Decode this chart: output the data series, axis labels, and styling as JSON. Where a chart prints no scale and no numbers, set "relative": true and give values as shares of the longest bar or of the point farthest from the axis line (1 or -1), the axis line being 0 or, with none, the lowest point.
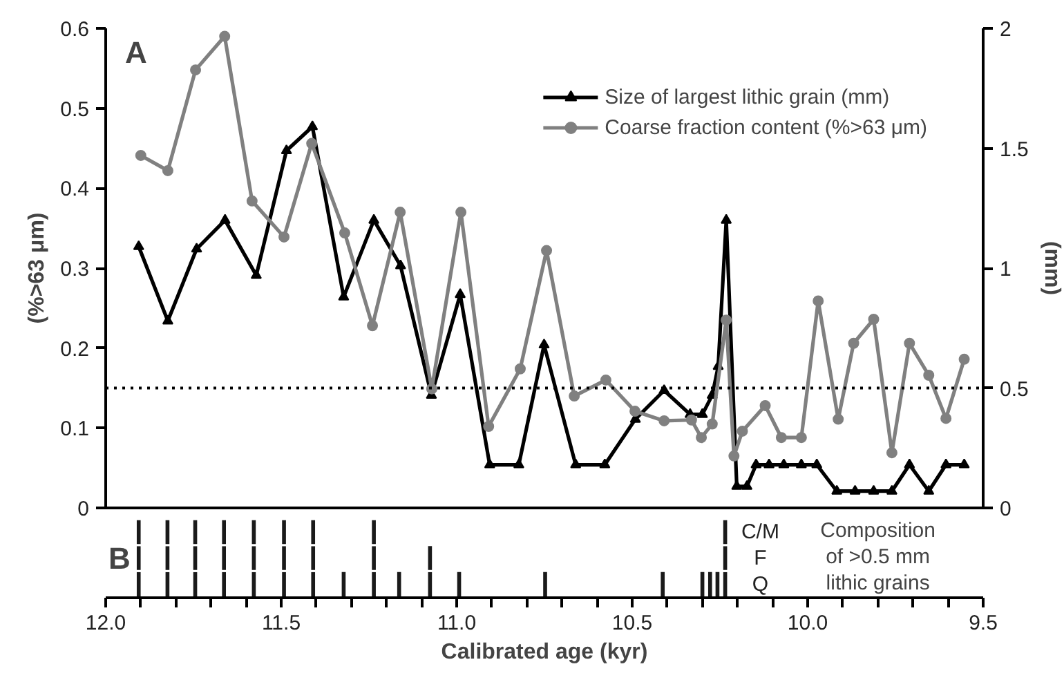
{
  "chart_data": [
    {
      "type": "line",
      "xlim": [
        12.0,
        9.5
      ],
      "xticks": [
        {
          "value": 12.0,
          "label": "12.0"
        },
        {
          "value": 11.5,
          "label": "11.5"
        },
        {
          "value": 11.0,
          "label": "11.0"
        },
        {
          "value": 10.5,
          "label": "10.5"
        },
        {
          "value": 10.0,
          "label": "10.0"
        },
        {
          "value": 9.5,
          "label": "9.5"
        }
      ],
      "tick_labels": "y",
      "ylim": [
        0,
        0.6
      ],
      "yticks": [
        0,
        0.1,
        0.2,
        0.3,
        0.4,
        0.5,
        0.6
      ],
      "y2lim": [
        0,
        2
      ],
      "y2ticks": [
        0,
        0.5,
        1,
        1.5,
        2
      ],
      "ylabel": "(%>63 μm)",
      "y2label": "(mm)",
      "legend": "top right",
      "annotations": [
        "A"
      ],
      "ref_lines": [
        {
          "axis": "y2",
          "value": 0.5,
          "color": "#000000",
          "line_style": "dotted"
        }
      ],
      "series": [
        {
          "name": "Size of largest lithic grain (mm)",
          "color": "#000000",
          "marker": "triangle",
          "axis": "y2",
          "x": [
            11.906,
            11.823,
            11.741,
            11.66,
            11.571,
            11.485,
            11.411,
            11.322,
            11.236,
            11.16,
            11.072,
            10.99,
            10.906,
            10.823,
            10.751,
            10.661,
            10.578,
            10.491,
            10.409,
            10.335,
            10.3,
            10.272,
            10.255,
            10.232,
            10.202,
            10.173,
            10.147,
            10.11,
            10.068,
            10.018,
            9.974,
            9.917,
            9.865,
            9.812,
            9.76,
            9.71,
            9.655,
            9.606,
            9.554
          ],
          "values": [
            1.09,
            0.78,
            1.08,
            1.2,
            0.97,
            1.49,
            1.59,
            0.88,
            1.2,
            1.01,
            0.47,
            0.89,
            0.18,
            0.18,
            0.68,
            0.18,
            0.18,
            0.37,
            0.49,
            0.39,
            0.39,
            0.47,
            0.59,
            1.2,
            0.09,
            0.09,
            0.18,
            0.18,
            0.18,
            0.18,
            0.18,
            0.07,
            0.07,
            0.07,
            0.07,
            0.18,
            0.07,
            0.18,
            0.18
          ]
        },
        {
          "name": "Coarse fraction content (%>63 μm)",
          "color": "#808080",
          "marker": "circle",
          "x": [
            11.9,
            11.823,
            11.744,
            11.661,
            11.583,
            11.492,
            11.413,
            11.319,
            11.24,
            11.161,
            11.071,
            10.988,
            10.909,
            10.819,
            10.744,
            10.665,
            10.575,
            10.492,
            10.409,
            10.331,
            10.303,
            10.272,
            10.232,
            10.21,
            10.186,
            10.121,
            10.075,
            10.018,
            9.97,
            9.913,
            9.869,
            9.812,
            9.76,
            9.71,
            9.655,
            9.606,
            9.554
          ],
          "values": [
            0.441,
            0.422,
            0.548,
            0.59,
            0.384,
            0.339,
            0.456,
            0.344,
            0.228,
            0.37,
            0.149,
            0.37,
            0.102,
            0.174,
            0.322,
            0.14,
            0.16,
            0.121,
            0.109,
            0.11,
            0.088,
            0.105,
            0.235,
            0.065,
            0.096,
            0.128,
            0.088,
            0.088,
            0.259,
            0.111,
            0.206,
            0.236,
            0.069,
            0.206,
            0.166,
            0.112,
            0.186
          ]
        }
      ]
    },
    {
      "type": "bar",
      "stacked": true,
      "relative": true,
      "xlim": [
        12.0,
        9.5
      ],
      "xticks": [
        {
          "value": 12.0,
          "label": "12.0"
        },
        {
          "value": 11.9,
          "label": null
        },
        {
          "value": 11.8,
          "label": null
        },
        {
          "value": 11.7,
          "label": null
        },
        {
          "value": 11.6,
          "label": null
        },
        {
          "value": 11.5,
          "label": "11.5"
        },
        {
          "value": 11.4,
          "label": null
        },
        {
          "value": 11.3,
          "label": null
        },
        {
          "value": 11.2,
          "label": null
        },
        {
          "value": 11.1,
          "label": null
        },
        {
          "value": 11.0,
          "label": "11.0"
        },
        {
          "value": 10.9,
          "label": null
        },
        {
          "value": 10.8,
          "label": null
        },
        {
          "value": 10.7,
          "label": null
        },
        {
          "value": 10.6,
          "label": null
        },
        {
          "value": 10.5,
          "label": "10.5"
        },
        {
          "value": 10.4,
          "label": null
        },
        {
          "value": 10.3,
          "label": null
        },
        {
          "value": 10.2,
          "label": null
        },
        {
          "value": 10.1,
          "label": null
        },
        {
          "value": 10.0,
          "label": "10.0"
        },
        {
          "value": 9.9,
          "label": null
        },
        {
          "value": 9.8,
          "label": null
        },
        {
          "value": 9.7,
          "label": null
        },
        {
          "value": 9.6,
          "label": null
        },
        {
          "value": 9.5,
          "label": "9.5"
        }
      ],
      "xlabel": "Calibrated age (kyr)",
      "annotations": [
        "B",
        "Composition of >0.5 mm lithic grains"
      ],
      "x": [
        11.906,
        11.824,
        11.745,
        11.663,
        11.578,
        11.492,
        11.409,
        11.322,
        11.236,
        11.164,
        11.076,
        10.993,
        10.748,
        10.413,
        10.3,
        10.278,
        10.257,
        10.235
      ],
      "series": [
        {
          "name": "Q",
          "color": "#1a1a1a",
          "values": [
            0.34,
            0.34,
            0.34,
            0.34,
            0.34,
            0.34,
            0.34,
            0.34,
            0.34,
            0.34,
            0.34,
            0.34,
            0.34,
            0.34,
            0.34,
            0.34,
            0.34,
            0.34
          ]
        },
        {
          "name": "F",
          "color": "#1a1a1a",
          "values": [
            0.33,
            0.33,
            0.33,
            0.33,
            0.33,
            0.33,
            0.33,
            null,
            0.33,
            null,
            0.33,
            null,
            null,
            null,
            null,
            null,
            null,
            0.33
          ]
        },
        {
          "name": "C/M",
          "color": "#1a1a1a",
          "values": [
            0.33,
            0.33,
            0.33,
            0.33,
            0.33,
            0.33,
            0.33,
            null,
            0.33,
            null,
            null,
            null,
            null,
            null,
            null,
            null,
            null,
            0.33
          ]
        }
      ]
    }
  ]
}
